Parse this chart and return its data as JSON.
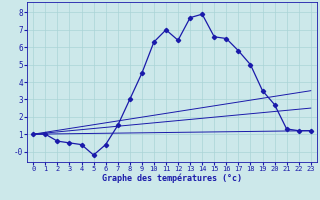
{
  "xlabel": "Graphe des températures (°c)",
  "bg_color": "#cce8ea",
  "grid_color": "#aad4d6",
  "line_color": "#1a1aaa",
  "xlim": [
    -0.5,
    23.5
  ],
  "ylim": [
    -0.6,
    8.6
  ],
  "yticks": [
    0,
    1,
    2,
    3,
    4,
    5,
    6,
    7,
    8
  ],
  "ytick_labels": [
    "-0",
    "1",
    "2",
    "3",
    "4",
    "5",
    "6",
    "7",
    "8"
  ],
  "xticks": [
    0,
    1,
    2,
    3,
    4,
    5,
    6,
    7,
    8,
    9,
    10,
    11,
    12,
    13,
    14,
    15,
    16,
    17,
    18,
    19,
    20,
    21,
    22,
    23
  ],
  "main_line": {
    "x": [
      0,
      1,
      2,
      3,
      4,
      5,
      6,
      7,
      8,
      9,
      10,
      11,
      12,
      13,
      14,
      15,
      16,
      17,
      18,
      19,
      20,
      21,
      22,
      23
    ],
    "y": [
      1.0,
      1.0,
      0.6,
      0.5,
      0.4,
      -0.2,
      0.4,
      1.5,
      3.0,
      4.5,
      6.3,
      7.0,
      6.4,
      7.7,
      7.9,
      6.6,
      6.5,
      5.8,
      5.0,
      3.5,
      2.7,
      1.3,
      1.2,
      1.2
    ]
  },
  "line2": {
    "x": [
      0,
      23
    ],
    "y": [
      1.0,
      1.2
    ]
  },
  "line3": {
    "x": [
      0,
      23
    ],
    "y": [
      1.0,
      2.5
    ]
  },
  "line4": {
    "x": [
      0,
      23
    ],
    "y": [
      1.0,
      3.5
    ]
  }
}
